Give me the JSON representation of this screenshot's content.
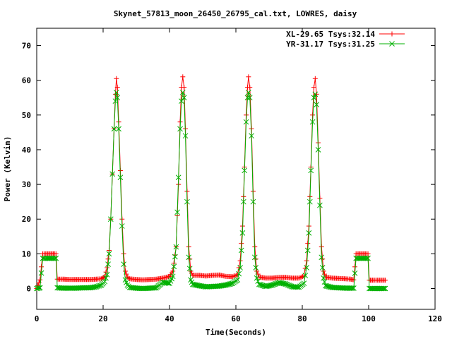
{
  "chart_data": {
    "type": "line",
    "title": "Skynet_57813_moon_26450_26795_cal.txt, LOWRES, daisy",
    "xlabel": "Time(Seconds)",
    "ylabel": "Power (Kelvin)",
    "xlim": [
      0,
      120
    ],
    "ylim": [
      -6,
      75
    ],
    "x_ticks": [
      0,
      20,
      40,
      60,
      80,
      100,
      120
    ],
    "y_ticks": [
      0,
      10,
      20,
      30,
      40,
      50,
      60,
      70
    ],
    "grid": false,
    "legend_position": "top-right",
    "series": [
      {
        "name": "XL-29.65 Tsys:32.14",
        "color": "#ff0000",
        "marker": "plus",
        "points": [
          [
            0.0,
            0.0
          ],
          [
            1.0,
            2.5
          ],
          [
            1.8,
            10.0
          ],
          [
            3.0,
            10.0
          ],
          [
            4.0,
            10.0
          ],
          [
            5.0,
            10.0
          ],
          [
            5.8,
            10.0
          ],
          [
            6.2,
            2.7
          ],
          [
            8.0,
            2.7
          ],
          [
            10.0,
            2.6
          ],
          [
            12.0,
            2.6
          ],
          [
            14.0,
            2.6
          ],
          [
            16.0,
            2.6
          ],
          [
            18.0,
            2.7
          ],
          [
            19.5,
            2.8
          ],
          [
            20.5,
            3.5
          ],
          [
            21.2,
            6.0
          ],
          [
            21.8,
            11.0
          ],
          [
            22.3,
            20.0
          ],
          [
            22.8,
            33.0
          ],
          [
            23.3,
            46.0
          ],
          [
            23.7,
            56.0
          ],
          [
            24.0,
            60.5
          ],
          [
            24.3,
            58.0
          ],
          [
            24.7,
            48.0
          ],
          [
            25.2,
            34.0
          ],
          [
            25.7,
            20.0
          ],
          [
            26.2,
            10.0
          ],
          [
            26.7,
            5.0
          ],
          [
            27.3,
            3.3
          ],
          [
            28.0,
            2.8
          ],
          [
            30.0,
            2.6
          ],
          [
            32.0,
            2.5
          ],
          [
            34.0,
            2.6
          ],
          [
            36.0,
            2.7
          ],
          [
            38.0,
            3.0
          ],
          [
            40.0,
            3.5
          ],
          [
            41.0,
            5.0
          ],
          [
            42.0,
            12.0
          ],
          [
            42.7,
            30.0
          ],
          [
            43.2,
            48.0
          ],
          [
            43.6,
            58.0
          ],
          [
            44.0,
            61.0
          ],
          [
            44.4,
            58.0
          ],
          [
            44.8,
            46.0
          ],
          [
            45.3,
            28.0
          ],
          [
            45.8,
            12.0
          ],
          [
            46.4,
            5.0
          ],
          [
            47.0,
            3.8
          ],
          [
            49.0,
            3.8
          ],
          [
            51.0,
            3.6
          ],
          [
            53.0,
            3.8
          ],
          [
            55.0,
            3.9
          ],
          [
            57.0,
            3.5
          ],
          [
            59.0,
            3.4
          ],
          [
            60.5,
            4.0
          ],
          [
            61.3,
            8.0
          ],
          [
            62.0,
            18.0
          ],
          [
            62.6,
            35.0
          ],
          [
            63.1,
            50.0
          ],
          [
            63.5,
            58.0
          ],
          [
            63.8,
            61.0
          ],
          [
            64.2,
            58.0
          ],
          [
            64.7,
            46.0
          ],
          [
            65.2,
            28.0
          ],
          [
            65.7,
            12.0
          ],
          [
            66.3,
            5.0
          ],
          [
            67.0,
            3.3
          ],
          [
            69.0,
            3.0
          ],
          [
            71.0,
            3.0
          ],
          [
            73.0,
            3.2
          ],
          [
            75.0,
            3.2
          ],
          [
            77.0,
            3.0
          ],
          [
            79.0,
            3.0
          ],
          [
            80.5,
            3.6
          ],
          [
            81.3,
            8.0
          ],
          [
            82.0,
            18.0
          ],
          [
            82.6,
            35.0
          ],
          [
            83.1,
            50.0
          ],
          [
            83.5,
            58.0
          ],
          [
            83.9,
            60.5
          ],
          [
            84.3,
            56.0
          ],
          [
            84.8,
            42.0
          ],
          [
            85.3,
            26.0
          ],
          [
            85.8,
            12.0
          ],
          [
            86.4,
            5.0
          ],
          [
            87.0,
            3.3
          ],
          [
            89.0,
            3.0
          ],
          [
            91.0,
            2.9
          ],
          [
            93.0,
            2.8
          ],
          [
            94.5,
            2.7
          ],
          [
            95.5,
            2.5
          ],
          [
            96.2,
            10.0
          ],
          [
            97.0,
            10.0
          ],
          [
            98.0,
            10.0
          ],
          [
            99.0,
            10.0
          ],
          [
            99.8,
            10.0
          ],
          [
            100.2,
            2.4
          ],
          [
            101.5,
            2.4
          ],
          [
            103.0,
            2.4
          ],
          [
            105.0,
            2.4
          ]
        ]
      },
      {
        "name": "YR-31.17 Tsys:31.25",
        "color": "#00b000",
        "marker": "x",
        "points": [
          [
            0.0,
            0.0
          ],
          [
            1.0,
            0.2
          ],
          [
            1.8,
            8.7
          ],
          [
            3.0,
            8.7
          ],
          [
            4.0,
            8.7
          ],
          [
            5.0,
            8.7
          ],
          [
            5.8,
            8.7
          ],
          [
            6.2,
            0.2
          ],
          [
            8.0,
            0.1
          ],
          [
            10.0,
            0.1
          ],
          [
            12.0,
            0.1
          ],
          [
            14.0,
            0.2
          ],
          [
            16.0,
            0.2
          ],
          [
            18.0,
            0.5
          ],
          [
            19.5,
            1.0
          ],
          [
            20.5,
            2.0
          ],
          [
            21.2,
            4.0
          ],
          [
            21.8,
            10.0
          ],
          [
            22.3,
            20.0
          ],
          [
            22.8,
            33.0
          ],
          [
            23.3,
            46.0
          ],
          [
            23.7,
            54.0
          ],
          [
            24.0,
            56.5
          ],
          [
            24.3,
            55.0
          ],
          [
            24.7,
            46.0
          ],
          [
            25.2,
            32.0
          ],
          [
            25.7,
            18.0
          ],
          [
            26.2,
            7.0
          ],
          [
            26.7,
            2.5
          ],
          [
            27.3,
            1.0
          ],
          [
            28.0,
            0.3
          ],
          [
            30.0,
            0.1
          ],
          [
            32.0,
            0.0
          ],
          [
            34.0,
            0.1
          ],
          [
            36.0,
            0.2
          ],
          [
            38.0,
            1.8
          ],
          [
            40.0,
            1.5
          ],
          [
            41.0,
            3.5
          ],
          [
            42.0,
            12.0
          ],
          [
            42.7,
            32.0
          ],
          [
            43.2,
            46.0
          ],
          [
            43.6,
            54.0
          ],
          [
            44.0,
            56.5
          ],
          [
            44.4,
            55.0
          ],
          [
            44.8,
            44.0
          ],
          [
            45.3,
            25.0
          ],
          [
            45.8,
            9.0
          ],
          [
            46.4,
            2.5
          ],
          [
            47.0,
            1.2
          ],
          [
            49.0,
            0.8
          ],
          [
            51.0,
            0.5
          ],
          [
            53.0,
            0.6
          ],
          [
            55.0,
            0.7
          ],
          [
            57.0,
            1.0
          ],
          [
            59.0,
            1.5
          ],
          [
            60.5,
            2.5
          ],
          [
            61.3,
            6.0
          ],
          [
            62.0,
            16.0
          ],
          [
            62.6,
            34.0
          ],
          [
            63.1,
            48.0
          ],
          [
            63.5,
            55.0
          ],
          [
            63.8,
            56.5
          ],
          [
            64.2,
            55.0
          ],
          [
            64.7,
            44.0
          ],
          [
            65.2,
            25.0
          ],
          [
            65.7,
            9.0
          ],
          [
            66.3,
            3.0
          ],
          [
            67.0,
            1.2
          ],
          [
            69.0,
            0.6
          ],
          [
            71.0,
            1.0
          ],
          [
            73.0,
            1.7
          ],
          [
            75.0,
            1.3
          ],
          [
            77.0,
            0.5
          ],
          [
            79.0,
            0.4
          ],
          [
            80.5,
            1.5
          ],
          [
            81.3,
            6.0
          ],
          [
            82.0,
            16.0
          ],
          [
            82.6,
            34.0
          ],
          [
            83.1,
            48.0
          ],
          [
            83.5,
            55.0
          ],
          [
            83.9,
            56.0
          ],
          [
            84.3,
            53.0
          ],
          [
            84.8,
            40.0
          ],
          [
            85.3,
            24.0
          ],
          [
            85.8,
            9.0
          ],
          [
            86.4,
            3.0
          ],
          [
            87.0,
            0.8
          ],
          [
            89.0,
            0.3
          ],
          [
            91.0,
            0.2
          ],
          [
            93.0,
            0.1
          ],
          [
            94.5,
            0.1
          ],
          [
            95.5,
            0.1
          ],
          [
            96.2,
            8.7
          ],
          [
            97.0,
            8.7
          ],
          [
            98.0,
            8.7
          ],
          [
            99.0,
            8.7
          ],
          [
            99.8,
            8.7
          ],
          [
            100.2,
            0.0
          ],
          [
            101.5,
            0.0
          ],
          [
            103.0,
            0.0
          ],
          [
            105.0,
            0.0
          ]
        ]
      }
    ]
  }
}
